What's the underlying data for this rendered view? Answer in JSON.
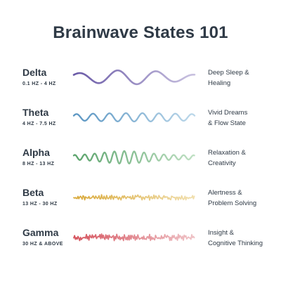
{
  "title": "Brainwave States 101",
  "states": [
    {
      "name": "Delta",
      "range": "0.1 HZ - 4 HZ",
      "description": [
        "Deep Sleep &",
        "Healing"
      ],
      "color_start": "#6a5aa7",
      "color_end": "#c9c2e0"
    },
    {
      "name": "Theta",
      "range": "4 HZ - 7.5 HZ",
      "description": [
        "Vivid Dreams",
        "& Flow State"
      ],
      "color_start": "#5a95c2",
      "color_end": "#bcd8ea"
    },
    {
      "name": "Alpha",
      "range": "8 HZ - 13 HZ",
      "description": [
        "Relaxation &",
        "Creativity"
      ],
      "color_start": "#5aa36b",
      "color_end": "#bfe0c3"
    },
    {
      "name": "Beta",
      "range": "13 HZ - 30 HZ",
      "description": [
        "Alertness &",
        "Problem Solving"
      ],
      "color_start": "#d9a93a",
      "color_end": "#f1dfae"
    },
    {
      "name": "Gamma",
      "range": "30 HZ & ABOVE",
      "description": [
        "Insight &",
        "Cognitive Thinking"
      ],
      "color_start": "#d6545e",
      "color_end": "#efc2c6"
    }
  ]
}
